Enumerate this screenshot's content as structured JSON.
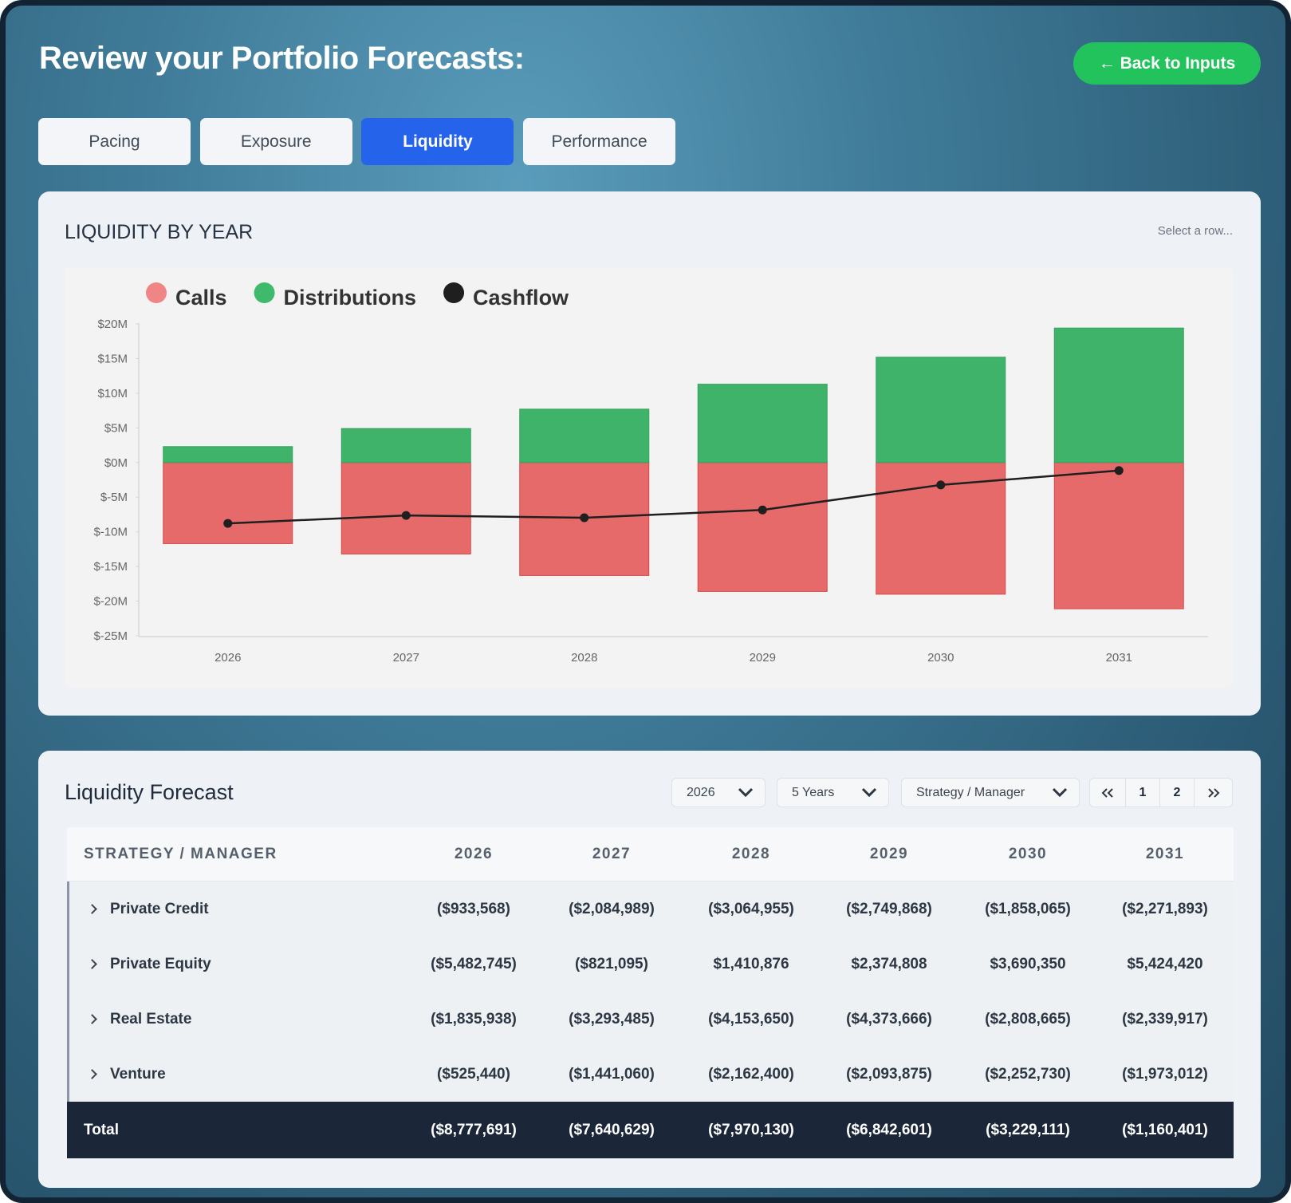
{
  "header": {
    "title": "Review your Portfolio Forecasts:",
    "back_button": "← Back to Inputs"
  },
  "tabs": [
    "Pacing",
    "Exposure",
    "Liquidity",
    "Performance"
  ],
  "active_tab": 2,
  "chart_card": {
    "title": "LIQUIDITY BY YEAR",
    "hint": "Select a row..."
  },
  "chart_data": {
    "type": "bar",
    "categories": [
      "2026",
      "2027",
      "2028",
      "2029",
      "2030",
      "2031"
    ],
    "series": [
      {
        "name": "Calls",
        "color": "#e66a6a",
        "legend_color": "#f08585",
        "values": [
          -11.7,
          -13.2,
          -16.3,
          -18.6,
          -19.0,
          -21.1
        ]
      },
      {
        "name": "Distributions",
        "color": "#40b36a",
        "legend_color": "#3fba6c",
        "values": [
          2.3,
          4.9,
          7.7,
          11.3,
          15.2,
          19.4
        ]
      },
      {
        "name": "Cashflow",
        "type": "line",
        "color": "#1f1f1f",
        "values": [
          -8.78,
          -7.64,
          -7.97,
          -6.84,
          -3.23,
          -1.16
        ]
      }
    ],
    "ylim": [
      -25,
      20
    ],
    "yticks": [
      {
        "value": 20,
        "label": "$20M"
      },
      {
        "value": 15,
        "label": "$15M"
      },
      {
        "value": 10,
        "label": "$10M"
      },
      {
        "value": 5,
        "label": "$5M"
      },
      {
        "value": 0,
        "label": "$0M"
      },
      {
        "value": -5,
        "label": "$-5M"
      },
      {
        "value": -10,
        "label": "$-10M"
      },
      {
        "value": -15,
        "label": "$-15M"
      },
      {
        "value": -20,
        "label": "$-20M"
      },
      {
        "value": -25,
        "label": "$-25M"
      }
    ],
    "grid": false,
    "legend": "top-left"
  },
  "table_card": {
    "title": "Liquidity Forecast",
    "year_select": "2026",
    "range_select": "5 Years",
    "group_select": "Strategy / Manager",
    "pages": [
      "1",
      "2"
    ]
  },
  "table": {
    "header": [
      "STRATEGY / MANAGER",
      "2026",
      "2027",
      "2028",
      "2029",
      "2030",
      "2031"
    ],
    "rows": [
      [
        "Private Credit",
        "($933,568)",
        "($2,084,989)",
        "($3,064,955)",
        "($2,749,868)",
        "($1,858,065)",
        "($2,271,893)"
      ],
      [
        "Private Equity",
        "($5,482,745)",
        "($821,095)",
        "$1,410,876",
        "$2,374,808",
        "$3,690,350",
        "$5,424,420"
      ],
      [
        "Real Estate",
        "($1,835,938)",
        "($3,293,485)",
        "($4,153,650)",
        "($4,373,666)",
        "($2,808,665)",
        "($2,339,917)"
      ],
      [
        "Venture",
        "($525,440)",
        "($1,441,060)",
        "($2,162,400)",
        "($2,093,875)",
        "($2,252,730)",
        "($1,973,012)"
      ]
    ],
    "total": [
      "Total",
      "($8,777,691)",
      "($7,640,629)",
      "($7,970,130)",
      "($6,842,601)",
      "($3,229,111)",
      "($1,160,401)"
    ]
  }
}
